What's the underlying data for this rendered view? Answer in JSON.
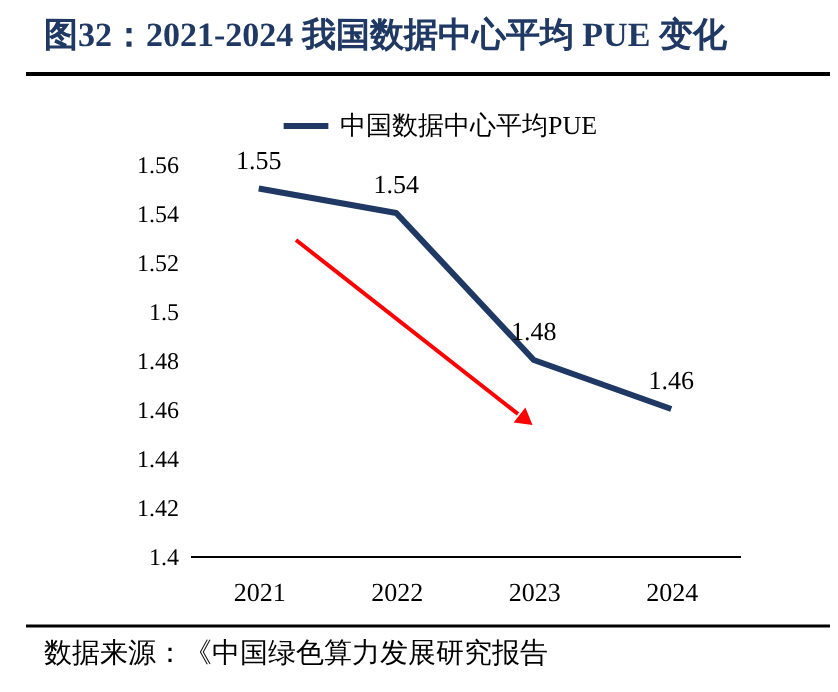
{
  "chart_data": {
    "type": "line",
    "title": "图32：2021-2024 我国数据中心平均 PUE 变化",
    "categories": [
      "2021",
      "2022",
      "2023",
      "2024"
    ],
    "series": [
      {
        "name": "中国数据中心平均PUE",
        "color": "#1f3864",
        "values": [
          1.55,
          1.54,
          1.48,
          1.46
        ]
      }
    ],
    "ylim": [
      1.4,
      1.56
    ],
    "yticks": [
      1.4,
      1.42,
      1.44,
      1.46,
      1.48,
      1.5,
      1.52,
      1.54,
      1.56
    ],
    "data_labels": true,
    "grid": false,
    "legend": "top",
    "marker": "none",
    "line_style": "solid",
    "annotations": [
      "数据来源：《中国绿色算力发展研究报告"
    ]
  }
}
